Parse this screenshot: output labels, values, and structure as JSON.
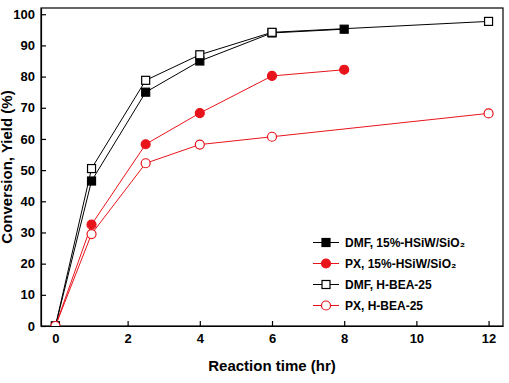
{
  "chart_data": {
    "type": "line",
    "x_label": "Reaction time (hr)",
    "y_label": "Conversion, Yield (%)",
    "xlim": [
      -0.4,
      12.4
    ],
    "xticks": [
      0,
      2,
      4,
      6,
      8,
      10,
      12
    ],
    "ylim": [
      0,
      102
    ],
    "yticks": [
      0,
      10,
      20,
      30,
      40,
      50,
      60,
      70,
      80,
      90,
      100
    ],
    "grid": false,
    "legend": "lower right",
    "series": [
      {
        "name": "DMF, 15%-HSiW/SiO₂",
        "color": "#000000",
        "marker": "square",
        "line_style": "solid",
        "x": [
          0,
          1,
          2.5,
          4,
          6,
          8
        ],
        "values": [
          0,
          46.5,
          75,
          85,
          94,
          95.2
        ]
      },
      {
        "name": "PX, 15%-HSiW/SiO₂",
        "color": "#e8141b",
        "marker": "circle",
        "line_style": "solid",
        "x": [
          0,
          1,
          2.5,
          4,
          6,
          8
        ],
        "values": [
          0,
          32.5,
          58.3,
          68.3,
          80.2,
          82.2
        ]
      },
      {
        "name": "DMF, H-BEA-25",
        "color": "#000000",
        "marker": "open-square",
        "line_style": "solid",
        "x": [
          0,
          1,
          2.5,
          4,
          6,
          12
        ],
        "values": [
          0,
          50.5,
          78.8,
          87,
          94.2,
          97.7
        ]
      },
      {
        "name": "PX, H-BEA-25",
        "color": "#e8141b",
        "marker": "open-circle",
        "line_style": "solid",
        "x": [
          0,
          1,
          2.5,
          4,
          6,
          12
        ],
        "values": [
          0,
          29.5,
          52.2,
          58.2,
          60.7,
          68.2
        ]
      }
    ]
  }
}
